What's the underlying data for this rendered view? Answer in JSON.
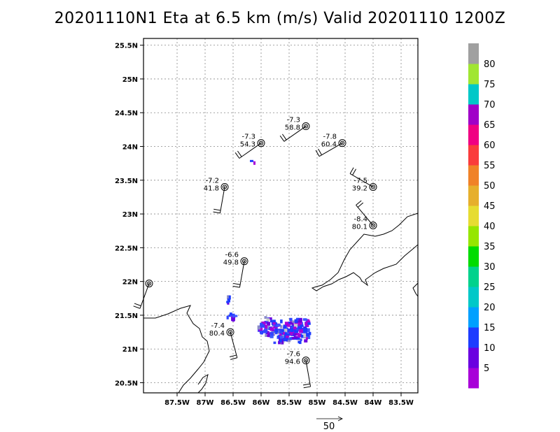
{
  "title": "20201110N1 Eta at 6.5 km (m/s) Valid 20201110 1200Z",
  "chart_data": {
    "type": "scatter",
    "title": "20201110N1 Eta at 6.5 km (m/s) Valid 20201110 1200Z",
    "xlim": [
      -88.1,
      -83.2
    ],
    "ylim": [
      20.35,
      25.6
    ],
    "x_ticks": [
      {
        "value": -87.5,
        "label": "87.5W"
      },
      {
        "value": -87,
        "label": "87W"
      },
      {
        "value": -86.5,
        "label": "86.5W"
      },
      {
        "value": -86,
        "label": "86W"
      },
      {
        "value": -85.5,
        "label": "85.5W"
      },
      {
        "value": -85,
        "label": "85W"
      },
      {
        "value": -84.5,
        "label": "84.5W"
      },
      {
        "value": -84,
        "label": "84W"
      },
      {
        "value": -83.5,
        "label": "83.5W"
      }
    ],
    "y_ticks": [
      {
        "value": 20.5,
        "label": "20.5N"
      },
      {
        "value": 21,
        "label": "21N"
      },
      {
        "value": 21.5,
        "label": "21.5N"
      },
      {
        "value": 22,
        "label": "22N"
      },
      {
        "value": 22.5,
        "label": "22.5N"
      },
      {
        "value": 23,
        "label": "23N"
      },
      {
        "value": 23.5,
        "label": "23.5N"
      },
      {
        "value": 24,
        "label": "24N"
      },
      {
        "value": 24.5,
        "label": "24.5N"
      },
      {
        "value": 25,
        "label": "25N"
      },
      {
        "value": 25.5,
        "label": "25.5N"
      }
    ],
    "grid": true,
    "observations": [
      {
        "lon": -85.2,
        "lat": 24.3,
        "label1": "-7.3",
        "label2": "58.8",
        "wind_dir": 235
      },
      {
        "lon": -86.0,
        "lat": 24.05,
        "label1": "-7.3",
        "label2": "54.3",
        "wind_dir": 235
      },
      {
        "lon": -84.55,
        "lat": 24.05,
        "label1": "-7.8",
        "label2": "60.4",
        "wind_dir": 240
      },
      {
        "lon": -86.65,
        "lat": 23.4,
        "label1": "-7.2",
        "label2": "41.8",
        "wind_dir": 190
      },
      {
        "lon": -84.0,
        "lat": 23.4,
        "label1": "-7.5",
        "label2": "39.2",
        "wind_dir": 300
      },
      {
        "lon": -84.0,
        "lat": 22.83,
        "label1": "-8.4",
        "label2": "80.1",
        "wind_dir": 320
      },
      {
        "lon": -86.3,
        "lat": 22.3,
        "label1": "-6.6",
        "label2": "49.8",
        "wind_dir": 190
      },
      {
        "lon": -88.0,
        "lat": 21.97,
        "label1": "",
        "label2": "",
        "wind_dir": 200
      },
      {
        "lon": -86.55,
        "lat": 21.25,
        "label1": "-7.4",
        "label2": "80.4",
        "wind_dir": 165
      },
      {
        "lon": -85.2,
        "lat": 20.83,
        "label1": "-7.6",
        "label2": "94.6",
        "wind_dir": 170
      }
    ],
    "colorbar": {
      "labels": [
        "5",
        "10",
        "15",
        "20",
        "25",
        "30",
        "35",
        "40",
        "45",
        "50",
        "55",
        "60",
        "65",
        "70",
        "75",
        "80"
      ],
      "colors": [
        "#a800d8",
        "#6a00e0",
        "#1e3cff",
        "#00a0ff",
        "#00c8c8",
        "#00d28c",
        "#00dc00",
        "#96e600",
        "#e6dc32",
        "#e6af2d",
        "#f08228",
        "#fa3c3c",
        "#f00082",
        "#a000c8",
        "#00c8c8",
        "#a0e632",
        "#a0a0a0"
      ]
    },
    "reference_vector": {
      "label": "50"
    }
  }
}
